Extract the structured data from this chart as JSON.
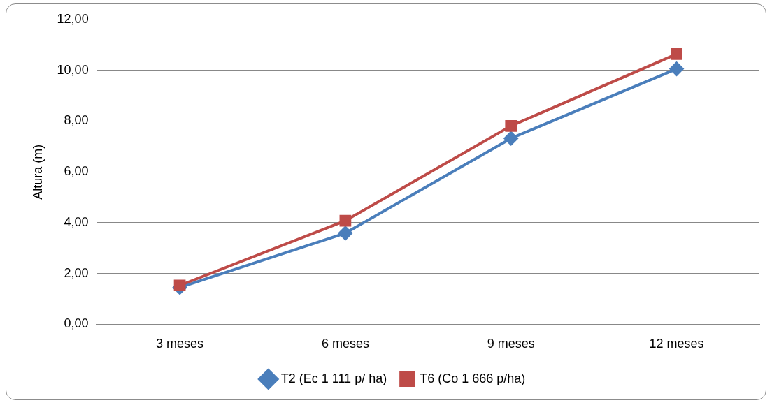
{
  "chart_data": {
    "type": "line",
    "ylabel": "Altura (m)",
    "categories": [
      "3 meses",
      "6 meses",
      "9 meses",
      "12 meses"
    ],
    "series": [
      {
        "name": "T2 (Ec 1 111 p/ ha)",
        "color": "#4a7ebb",
        "marker": "diamond",
        "values": [
          1.45,
          3.59,
          7.32,
          10.06
        ]
      },
      {
        "name": "T6 (Co 1 666 p/ha)",
        "color": "#be4b48",
        "marker": "square",
        "values": [
          1.53,
          4.08,
          7.81,
          10.64
        ]
      }
    ],
    "ylim": [
      0,
      12
    ],
    "yticks": [
      {
        "value": 0,
        "label": "0,00"
      },
      {
        "value": 2,
        "label": "2,00"
      },
      {
        "value": 4,
        "label": "4,00"
      },
      {
        "value": 6,
        "label": "6,00"
      },
      {
        "value": 8,
        "label": "8,00"
      },
      {
        "value": 10,
        "label": "10,00"
      },
      {
        "value": 12,
        "label": "12,00"
      }
    ],
    "grid": "y",
    "legend": "bottom",
    "line_style": "solid"
  }
}
